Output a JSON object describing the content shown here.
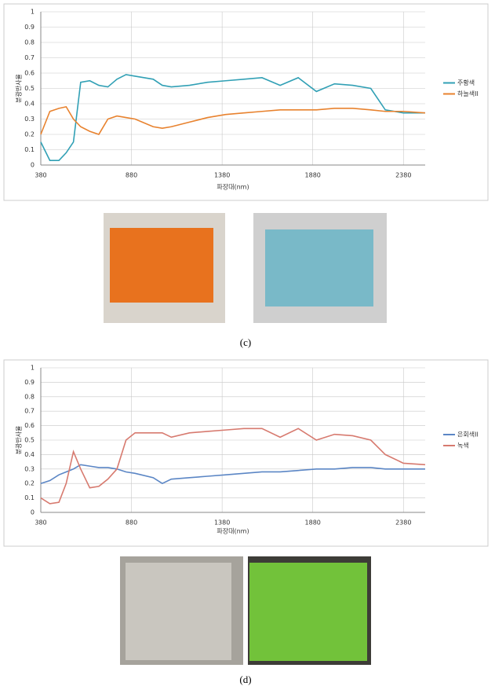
{
  "chart_data": [
    {
      "type": "line",
      "y_label": "분광반사율",
      "x_label": "파장대(nm)",
      "caption": "(c)",
      "x": [
        380,
        430,
        480,
        520,
        560,
        600,
        650,
        700,
        750,
        800,
        850,
        900,
        1000,
        1050,
        1100,
        1200,
        1300,
        1400,
        1500,
        1600,
        1700,
        1800,
        1900,
        2000,
        2100,
        2200,
        2280,
        2380,
        2500
      ],
      "series": [
        {
          "name": "주황색",
          "color": "#31a0b5",
          "values": [
            0.15,
            0.03,
            0.03,
            0.08,
            0.15,
            0.54,
            0.55,
            0.52,
            0.51,
            0.56,
            0.59,
            0.58,
            0.56,
            0.52,
            0.51,
            0.52,
            0.54,
            0.55,
            0.56,
            0.57,
            0.52,
            0.57,
            0.48,
            0.53,
            0.52,
            0.5,
            0.36,
            0.34,
            0.34
          ]
        },
        {
          "name": "하늘색II",
          "color": "#e8822e",
          "values": [
            0.2,
            0.35,
            0.37,
            0.38,
            0.3,
            0.25,
            0.22,
            0.2,
            0.3,
            0.32,
            0.31,
            0.3,
            0.25,
            0.24,
            0.25,
            0.28,
            0.31,
            0.33,
            0.34,
            0.35,
            0.36,
            0.36,
            0.36,
            0.37,
            0.37,
            0.36,
            0.35,
            0.35,
            0.34
          ]
        }
      ],
      "xlim": [
        380,
        2500
      ],
      "xticks": [
        380,
        880,
        1380,
        1880,
        2380
      ],
      "ylim": [
        0,
        1
      ],
      "yticks": [
        0,
        0.1,
        0.2,
        0.3,
        0.4,
        0.5,
        0.6,
        0.7,
        0.8,
        0.9,
        1
      ],
      "grid": true,
      "legend": "right"
    },
    {
      "type": "line",
      "y_label": "분광반사율",
      "x_label": "파장대(nm)",
      "caption": "(d)",
      "x": [
        380,
        430,
        480,
        520,
        560,
        600,
        650,
        700,
        750,
        800,
        850,
        900,
        1000,
        1050,
        1100,
        1200,
        1300,
        1400,
        1500,
        1600,
        1700,
        1800,
        1900,
        2000,
        2100,
        2200,
        2280,
        2380,
        2500
      ],
      "series": [
        {
          "name": "은회색II",
          "color": "#5b86c5",
          "values": [
            0.2,
            0.22,
            0.26,
            0.28,
            0.3,
            0.33,
            0.32,
            0.31,
            0.31,
            0.3,
            0.28,
            0.27,
            0.24,
            0.2,
            0.23,
            0.24,
            0.25,
            0.26,
            0.27,
            0.28,
            0.28,
            0.29,
            0.3,
            0.3,
            0.31,
            0.31,
            0.3,
            0.3,
            0.3
          ]
        },
        {
          "name": "녹색",
          "color": "#d77a6f",
          "values": [
            0.1,
            0.06,
            0.07,
            0.2,
            0.42,
            0.3,
            0.17,
            0.18,
            0.23,
            0.3,
            0.5,
            0.55,
            0.55,
            0.55,
            0.52,
            0.55,
            0.56,
            0.57,
            0.58,
            0.58,
            0.52,
            0.58,
            0.5,
            0.54,
            0.53,
            0.5,
            0.4,
            0.34,
            0.33
          ]
        }
      ],
      "xlim": [
        380,
        2500
      ],
      "xticks": [
        380,
        880,
        1380,
        1880,
        2380
      ],
      "ylim": [
        0,
        1
      ],
      "yticks": [
        0,
        0.1,
        0.2,
        0.3,
        0.4,
        0.5,
        0.6,
        0.7,
        0.8,
        0.9,
        1
      ],
      "grid": true,
      "legend": "right"
    }
  ]
}
